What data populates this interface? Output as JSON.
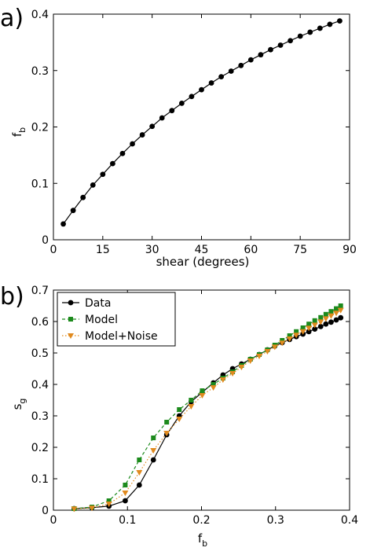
{
  "chart_data": [
    {
      "panel": "a)",
      "type": "line",
      "xlabel": "shear (degrees)",
      "ylabel": "f",
      "ylabel_subscript": "b",
      "xlim": [
        0,
        90
      ],
      "ylim": [
        0,
        0.4
      ],
      "xticks": [
        "0",
        "15",
        "30",
        "45",
        "60",
        "75",
        "90"
      ],
      "yticks": [
        "0",
        "0.1",
        "0.2",
        "0.3",
        "0.4"
      ],
      "series": [
        {
          "color": "#000000",
          "marker": "circle",
          "x": [
            3,
            6,
            9,
            12,
            15,
            18,
            21,
            24,
            27,
            30,
            33,
            36,
            39,
            42,
            45,
            48,
            51,
            54,
            57,
            60,
            63,
            66,
            69,
            72,
            75,
            78,
            81,
            84,
            87
          ],
          "y": [
            0.028,
            0.052,
            0.075,
            0.097,
            0.116,
            0.135,
            0.153,
            0.17,
            0.186,
            0.201,
            0.216,
            0.229,
            0.242,
            0.254,
            0.266,
            0.278,
            0.289,
            0.299,
            0.309,
            0.319,
            0.328,
            0.337,
            0.345,
            0.353,
            0.361,
            0.368,
            0.375,
            0.382,
            0.388
          ]
        }
      ]
    },
    {
      "panel": "b)",
      "type": "line",
      "xlabel": "f",
      "xlabel_subscript": "b",
      "ylabel": "s",
      "ylabel_subscript": "g",
      "xlim": [
        0,
        0.4
      ],
      "ylim": [
        0,
        0.7
      ],
      "xticks": [
        "0",
        "0.1",
        "0.2",
        "0.3",
        "0.4"
      ],
      "yticks": [
        "0",
        "0.1",
        "0.2",
        "0.3",
        "0.4",
        "0.5",
        "0.6",
        "0.7"
      ],
      "legend_position": "top-left",
      "series": [
        {
          "name": "Data",
          "color": "#000000",
          "marker": "circle",
          "dash": "solid",
          "x": [
            0.028,
            0.052,
            0.075,
            0.097,
            0.116,
            0.135,
            0.153,
            0.17,
            0.186,
            0.201,
            0.216,
            0.229,
            0.242,
            0.254,
            0.266,
            0.278,
            0.289,
            0.299,
            0.309,
            0.319,
            0.328,
            0.337,
            0.345,
            0.353,
            0.361,
            0.368,
            0.375,
            0.382,
            0.388
          ],
          "y": [
            0.005,
            0.008,
            0.013,
            0.03,
            0.08,
            0.16,
            0.24,
            0.3,
            0.345,
            0.375,
            0.405,
            0.43,
            0.45,
            0.465,
            0.48,
            0.495,
            0.51,
            0.522,
            0.533,
            0.543,
            0.552,
            0.56,
            0.568,
            0.576,
            0.584,
            0.592,
            0.598,
            0.605,
            0.612
          ]
        },
        {
          "name": "Model",
          "color": "#1c8a1c",
          "marker": "square",
          "dash": "dashed",
          "x": [
            0.028,
            0.052,
            0.075,
            0.097,
            0.116,
            0.135,
            0.153,
            0.17,
            0.186,
            0.201,
            0.216,
            0.229,
            0.242,
            0.254,
            0.266,
            0.278,
            0.289,
            0.299,
            0.309,
            0.319,
            0.328,
            0.337,
            0.345,
            0.353,
            0.361,
            0.368,
            0.375,
            0.382,
            0.388
          ],
          "y": [
            0.005,
            0.01,
            0.03,
            0.08,
            0.16,
            0.23,
            0.28,
            0.32,
            0.35,
            0.38,
            0.4,
            0.42,
            0.44,
            0.46,
            0.48,
            0.495,
            0.51,
            0.525,
            0.54,
            0.555,
            0.568,
            0.58,
            0.592,
            0.603,
            0.613,
            0.623,
            0.632,
            0.641,
            0.65
          ]
        },
        {
          "name": "Model+Noise",
          "color": "#e08a1e",
          "marker": "triangle-down",
          "dash": "dotted",
          "x": [
            0.028,
            0.052,
            0.075,
            0.097,
            0.116,
            0.135,
            0.153,
            0.17,
            0.186,
            0.201,
            0.216,
            0.229,
            0.242,
            0.254,
            0.266,
            0.278,
            0.289,
            0.299,
            0.309,
            0.319,
            0.328,
            0.337,
            0.345,
            0.353,
            0.361,
            0.368,
            0.375,
            0.382,
            0.388
          ],
          "y": [
            0.004,
            0.007,
            0.02,
            0.055,
            0.12,
            0.19,
            0.245,
            0.29,
            0.33,
            0.365,
            0.39,
            0.415,
            0.435,
            0.455,
            0.475,
            0.49,
            0.505,
            0.519,
            0.532,
            0.545,
            0.557,
            0.568,
            0.579,
            0.589,
            0.599,
            0.609,
            0.618,
            0.627,
            0.636
          ]
        }
      ]
    }
  ]
}
